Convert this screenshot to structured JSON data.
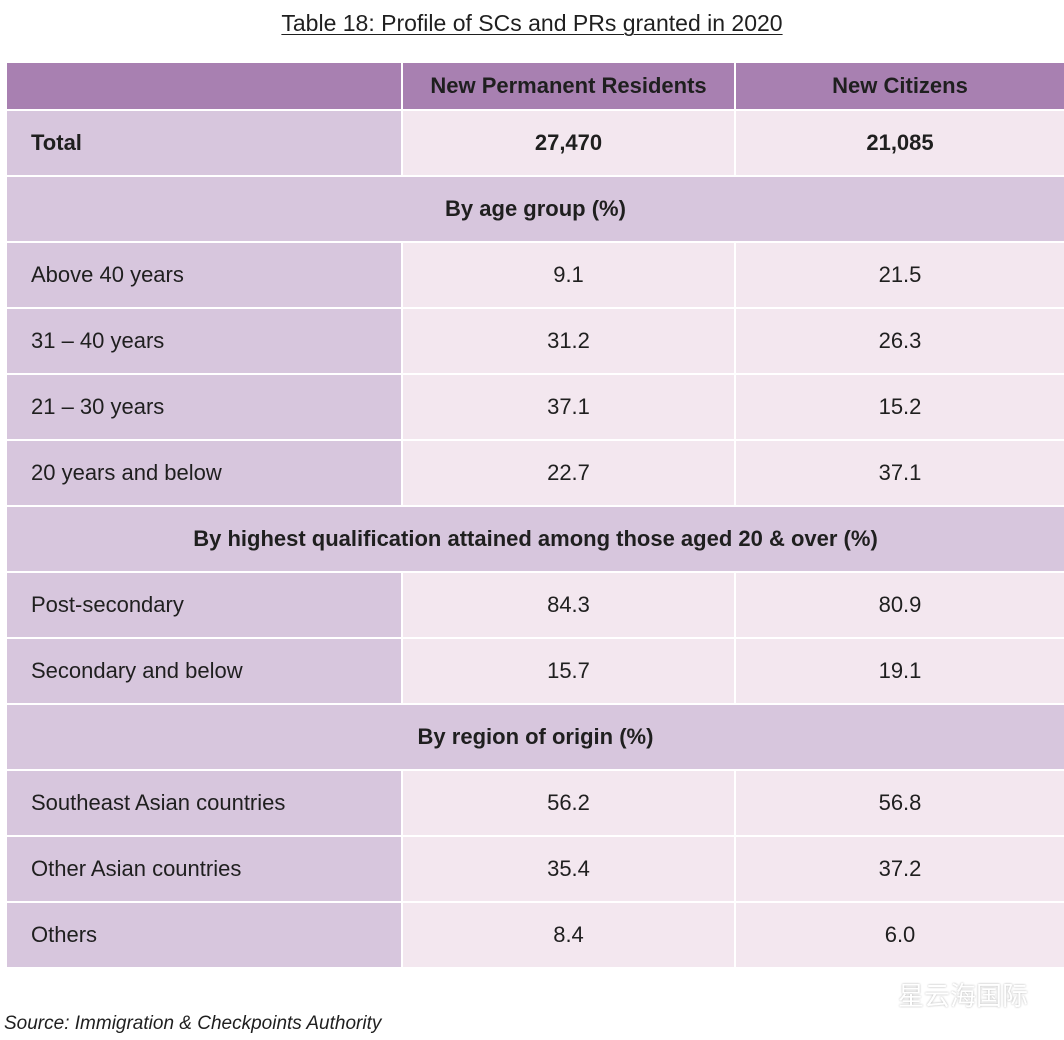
{
  "title": "Table 18: Profile of SCs and PRs granted in 2020",
  "columns": [
    "",
    "New Permanent Residents",
    "New Citizens"
  ],
  "total": {
    "label": "Total",
    "pr": "27,470",
    "sc": "21,085"
  },
  "sections": [
    {
      "heading": "By age group (%)",
      "rows": [
        {
          "label": "Above 40 years",
          "pr": "9.1",
          "sc": "21.5"
        },
        {
          "label": "31 – 40 years",
          "pr": "31.2",
          "sc": "26.3"
        },
        {
          "label": "21 – 30 years",
          "pr": "37.1",
          "sc": "15.2"
        },
        {
          "label": "20 years and below",
          "pr": "22.7",
          "sc": "37.1"
        }
      ]
    },
    {
      "heading": "By highest qualification attained among those aged 20 & over (%)",
      "rows": [
        {
          "label": "Post-secondary",
          "pr": "84.3",
          "sc": "80.9"
        },
        {
          "label": "Secondary and below",
          "pr": "15.7",
          "sc": "19.1"
        }
      ]
    },
    {
      "heading": "By region of origin (%)",
      "rows": [
        {
          "label": "Southeast Asian countries",
          "pr": "56.2",
          "sc": "56.8"
        },
        {
          "label": "Other Asian countries",
          "pr": "35.4",
          "sc": "37.2"
        },
        {
          "label": "Others",
          "pr": "8.4",
          "sc": "6.0"
        }
      ]
    }
  ],
  "source": "Source: Immigration & Checkpoints Authority",
  "watermark": {
    "text": "星云海国际",
    "icon": "wechat-logo-icon"
  },
  "colors": {
    "header": "#a880b1",
    "label_cell": "#d7c6dd",
    "value_cell": "#f3e7ef"
  }
}
